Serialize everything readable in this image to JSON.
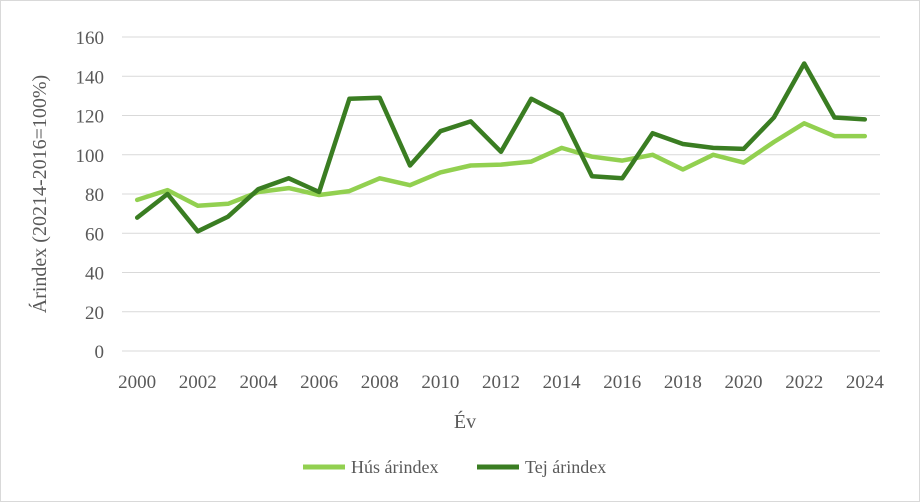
{
  "chart_data": {
    "type": "line",
    "xlabel": "Év",
    "ylabel": "Árindex  (20214-2016=100%)",
    "ylim": [
      0,
      160
    ],
    "y_ticks": [
      0,
      20,
      40,
      60,
      80,
      100,
      120,
      140,
      160
    ],
    "x": [
      2000,
      2001,
      2002,
      2003,
      2004,
      2005,
      2006,
      2007,
      2008,
      2009,
      2010,
      2011,
      2012,
      2013,
      2014,
      2015,
      2016,
      2017,
      2018,
      2019,
      2020,
      2021,
      2022,
      2023,
      2024
    ],
    "x_tick_labels": [
      "2000",
      "2002",
      "2004",
      "2006",
      "2008",
      "2010",
      "2012",
      "2014",
      "2016",
      "2018",
      "2020",
      "2022",
      "2024"
    ],
    "grid": "horizontal",
    "legend_position": "bottom",
    "series": [
      {
        "name": "Hús árindex",
        "color": "#92d050",
        "values": [
          77,
          82,
          74,
          75,
          81,
          83,
          79.5,
          81.5,
          88,
          84.5,
          91,
          94.5,
          95,
          96.5,
          103.5,
          99,
          97,
          100,
          92.5,
          100,
          96,
          106.5,
          116,
          109.5,
          109.5
        ]
      },
      {
        "name": "Tej árindex",
        "color": "#3a7d22",
        "values": [
          68,
          80,
          61,
          68.5,
          82.5,
          88,
          81,
          128.5,
          129,
          94.5,
          112,
          117,
          101.5,
          128.5,
          120.5,
          89,
          88,
          111,
          105.5,
          103.5,
          103,
          119,
          146.5,
          119,
          118
        ]
      }
    ]
  }
}
